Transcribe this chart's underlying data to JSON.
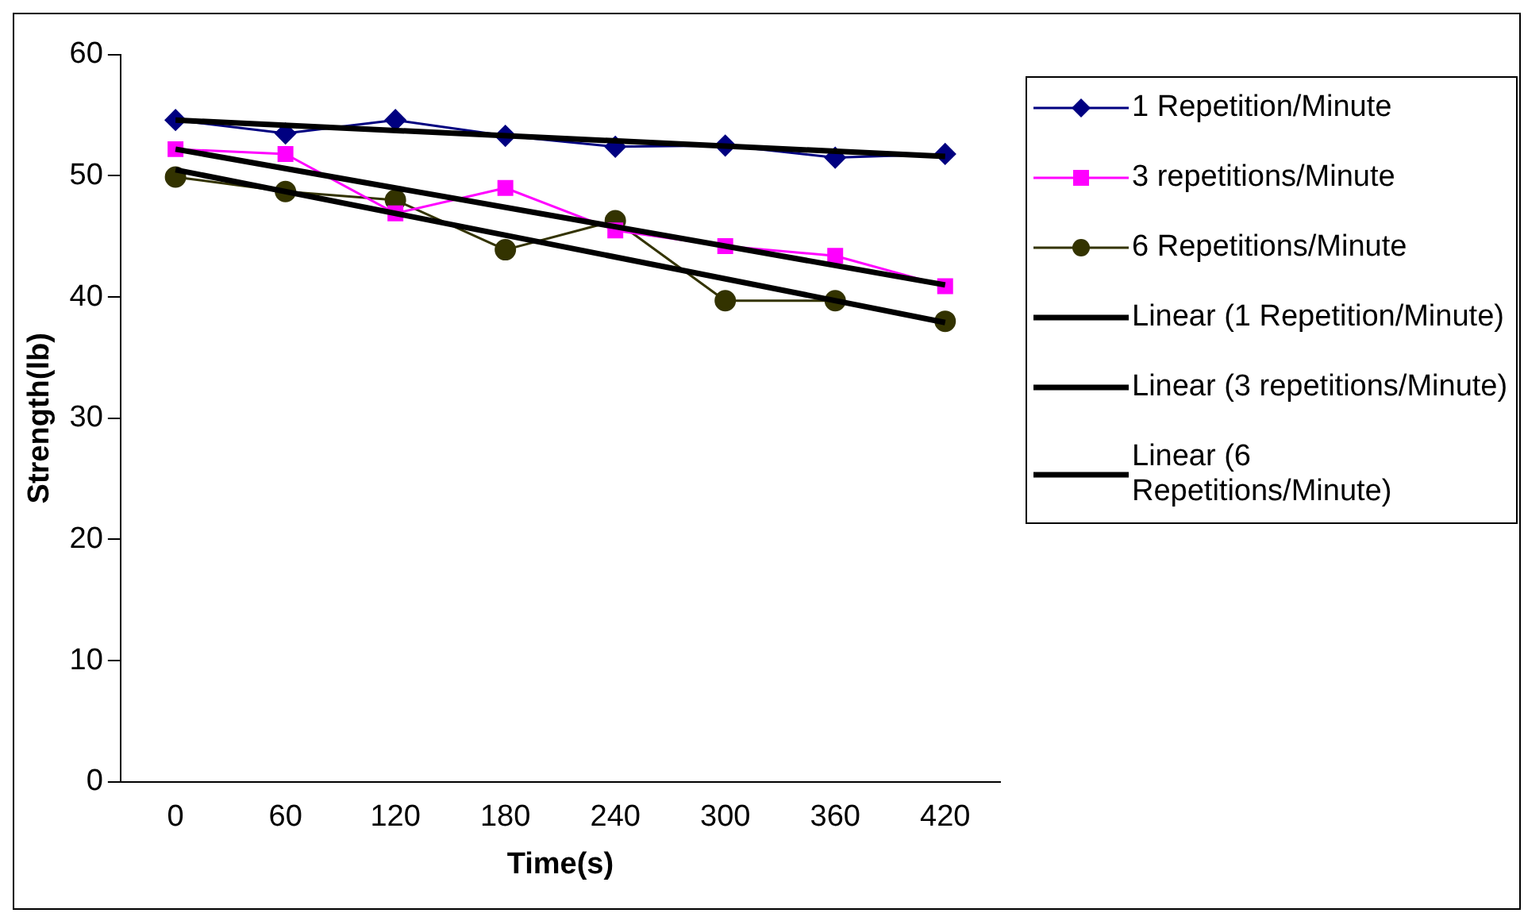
{
  "chart_data": {
    "type": "line",
    "xlabel": "Time(s)",
    "ylabel": "Strength(lb)",
    "categories": [
      "0",
      "60",
      "120",
      "180",
      "240",
      "300",
      "360",
      "420"
    ],
    "ylim": [
      0,
      60
    ],
    "yticks": [
      0,
      10,
      20,
      30,
      40,
      50,
      60
    ],
    "grid": false,
    "legend": "right",
    "series": [
      {
        "name": "1 Repetition/Minute",
        "color": "#000080",
        "marker": "diamond",
        "values": [
          54.6,
          53.5,
          54.6,
          53.3,
          52.4,
          52.5,
          51.5,
          51.8
        ]
      },
      {
        "name": "3 repetitions/Minute",
        "color": "#ff00ff",
        "marker": "square",
        "values": [
          52.2,
          51.8,
          46.9,
          49.0,
          45.5,
          44.2,
          43.4,
          40.9
        ]
      },
      {
        "name": "6 Repetitions/Minute",
        "color": "#333300",
        "marker": "circle",
        "values": [
          49.9,
          48.7,
          48.0,
          43.9,
          46.3,
          39.7,
          39.7,
          38.0
        ]
      },
      {
        "name": "Linear (1 Repetition/Minute)",
        "color": "#000000",
        "marker": "none",
        "x": [
          "0",
          "420"
        ],
        "values": [
          54.6,
          51.6
        ]
      },
      {
        "name": "Linear (3 repetitions/Minute)",
        "color": "#000000",
        "marker": "none",
        "x": [
          "0",
          "420"
        ],
        "values": [
          52.2,
          41.0
        ]
      },
      {
        "name": "Linear (6 Repetitions/Minute)",
        "color": "#000000",
        "marker": "none",
        "x": [
          "0",
          "420"
        ],
        "values": [
          50.5,
          37.9
        ]
      }
    ]
  }
}
